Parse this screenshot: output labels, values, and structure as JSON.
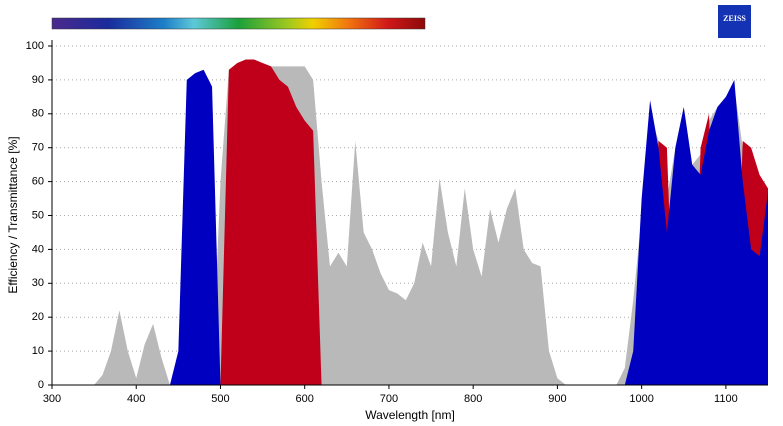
{
  "chart_data": {
    "type": "area",
    "xlabel": "Wavelength [nm]",
    "ylabel": "Efficiency / Transmittance [%]",
    "logo_text": "ZEISS",
    "xlim": [
      300,
      1150
    ],
    "xticks": [
      300,
      400,
      500,
      600,
      700,
      800,
      900,
      1000,
      1100
    ],
    "ylim": [
      0,
      100
    ],
    "yticks": [
      0,
      10,
      20,
      30,
      40,
      50,
      60,
      70,
      80,
      90,
      100
    ],
    "grid": true,
    "x": [
      350,
      360,
      370,
      380,
      390,
      400,
      410,
      420,
      430,
      440,
      450,
      460,
      470,
      480,
      490,
      500,
      510,
      520,
      530,
      540,
      550,
      560,
      570,
      580,
      590,
      600,
      610,
      620,
      630,
      640,
      650,
      660,
      670,
      680,
      690,
      700,
      710,
      720,
      730,
      740,
      750,
      760,
      770,
      780,
      790,
      800,
      810,
      820,
      830,
      840,
      850,
      860,
      870,
      880,
      890,
      900,
      910,
      920,
      930,
      940,
      950,
      960,
      970,
      980,
      990,
      1000,
      1010,
      1020,
      1030,
      1040,
      1050,
      1060,
      1070,
      1080,
      1090,
      1100,
      1110,
      1120,
      1130,
      1140,
      1150
    ],
    "series": [
      {
        "color": "#b9b9b9",
        "values": [
          0,
          3,
          10,
          22,
          10,
          2,
          12,
          18,
          8,
          0,
          0,
          0,
          0,
          0,
          0,
          60,
          93,
          94,
          94,
          94,
          94,
          94,
          94,
          94,
          94,
          94,
          90,
          60,
          35,
          39,
          35,
          72,
          45,
          40,
          33,
          28,
          27,
          25,
          30,
          42,
          35,
          61,
          45,
          35,
          58,
          40,
          32,
          52,
          42,
          52,
          58,
          40,
          36,
          35,
          10,
          2,
          0,
          0,
          0,
          0,
          0,
          0,
          0,
          5,
          25,
          50,
          80,
          72,
          55,
          70,
          82,
          65,
          68,
          78,
          82,
          85,
          88,
          70,
          65,
          60,
          58
        ]
      },
      {
        "color": "#c0001a",
        "values": [
          0,
          0,
          0,
          0,
          0,
          0,
          0,
          0,
          0,
          0,
          0,
          0,
          0,
          0,
          0,
          0,
          93,
          95,
          96,
          96,
          95,
          94,
          90,
          88,
          82,
          78,
          75,
          0,
          0,
          0,
          0,
          0,
          0,
          0,
          0,
          0,
          0,
          0,
          0,
          0,
          0,
          0,
          0,
          0,
          0,
          0,
          0,
          0,
          0,
          0,
          0,
          0,
          0,
          0,
          0,
          0,
          0,
          0,
          0,
          0,
          0,
          0,
          0,
          0,
          0,
          0,
          0,
          72,
          70,
          0,
          0,
          0,
          70,
          80,
          0,
          0,
          0,
          72,
          70,
          62,
          58
        ]
      },
      {
        "color": "#0000c0",
        "values": [
          0,
          0,
          0,
          0,
          0,
          0,
          0,
          0,
          0,
          0,
          10,
          90,
          92,
          93,
          88,
          0,
          0,
          0,
          0,
          0,
          0,
          0,
          0,
          0,
          0,
          0,
          0,
          0,
          0,
          0,
          0,
          0,
          0,
          0,
          0,
          0,
          0,
          0,
          0,
          0,
          0,
          0,
          0,
          0,
          0,
          0,
          0,
          0,
          0,
          0,
          0,
          0,
          0,
          0,
          0,
          0,
          0,
          0,
          0,
          0,
          0,
          0,
          0,
          0,
          10,
          55,
          84,
          70,
          45,
          70,
          82,
          65,
          62,
          75,
          82,
          85,
          90,
          60,
          40,
          38,
          57
        ]
      }
    ]
  }
}
